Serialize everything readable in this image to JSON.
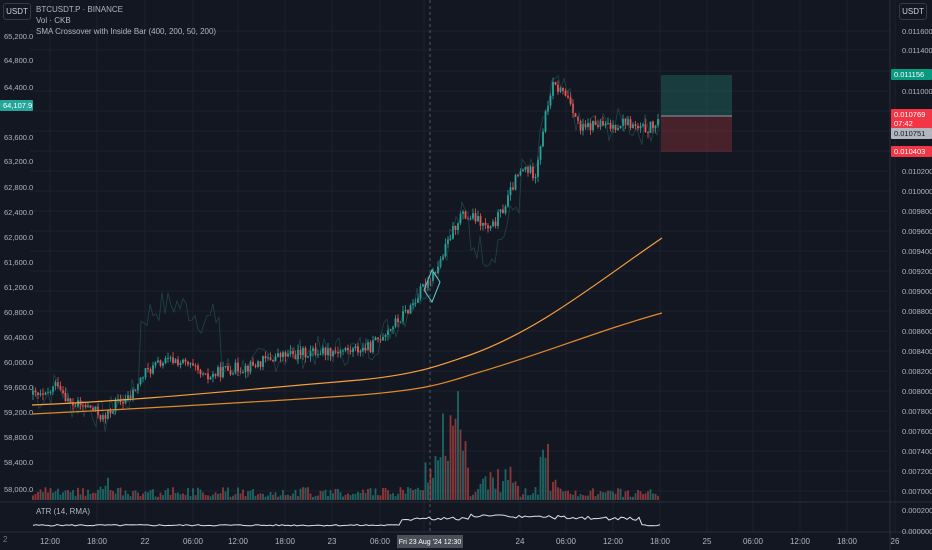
{
  "legend": {
    "symbol": "BTCUSDT.P · BINANCE",
    "volume": "Vol · CKB",
    "indicator": "SMA Crossover with Inside Bar (400, 200, 50, 200)"
  },
  "left_scale_unit": "USDT",
  "right_scale_unit": "USDT",
  "left_scale_ticks": [
    "65,200.0",
    "64,800.0",
    "64,400.0",
    "63,600.0",
    "63,200.0",
    "62,800.0",
    "62,400.0",
    "62,000.0",
    "61,600.0",
    "61,200.0",
    "60,800.0",
    "60,400.0",
    "60,000.0",
    "59,600.0",
    "59,200.0",
    "58,800.0",
    "58,400.0",
    "58,000.0"
  ],
  "left_price_badge": "64,107.9",
  "right_scale_ticks": [
    "0.011600",
    "0.011400",
    "0.011200",
    "0.011000",
    "0.010800",
    "0.010600",
    "0.010400",
    "0.010200",
    "0.010000",
    "0.009800",
    "0.009600",
    "0.009400",
    "0.009200",
    "0.009000",
    "0.008800",
    "0.008600",
    "0.008400",
    "0.008200",
    "0.008000",
    "0.007800",
    "0.007600",
    "0.007400",
    "0.007200",
    "0.007000",
    "0.000200",
    "0.000000"
  ],
  "right_badges": {
    "take_profit": "0.011156",
    "current": "0.010769",
    "countdown": "07:42",
    "entry": "0.010751",
    "stop_loss": "0.010403"
  },
  "time_ticks": [
    "12:00",
    "18:00",
    "22",
    "06:00",
    "12:00",
    "18:00",
    "23",
    "06:00",
    "12:30",
    "24",
    "06:00",
    "12:00",
    "18:00",
    "25",
    "06:00",
    "12:00",
    "18:00",
    "26"
  ],
  "crosshair_time": "Fri 23 Aug '24   12:30",
  "atr_label": "ATR (14, RMA)",
  "log_button": "2",
  "colors": {
    "background": "#131722",
    "up": "#26a69a",
    "down": "#ef5350",
    "sma_fast": "#f7a13c",
    "sma_slow": "#e08a2a",
    "tp_badge": "#089981",
    "sl_badge": "#f23645",
    "price_badge": "#26a69a"
  }
}
